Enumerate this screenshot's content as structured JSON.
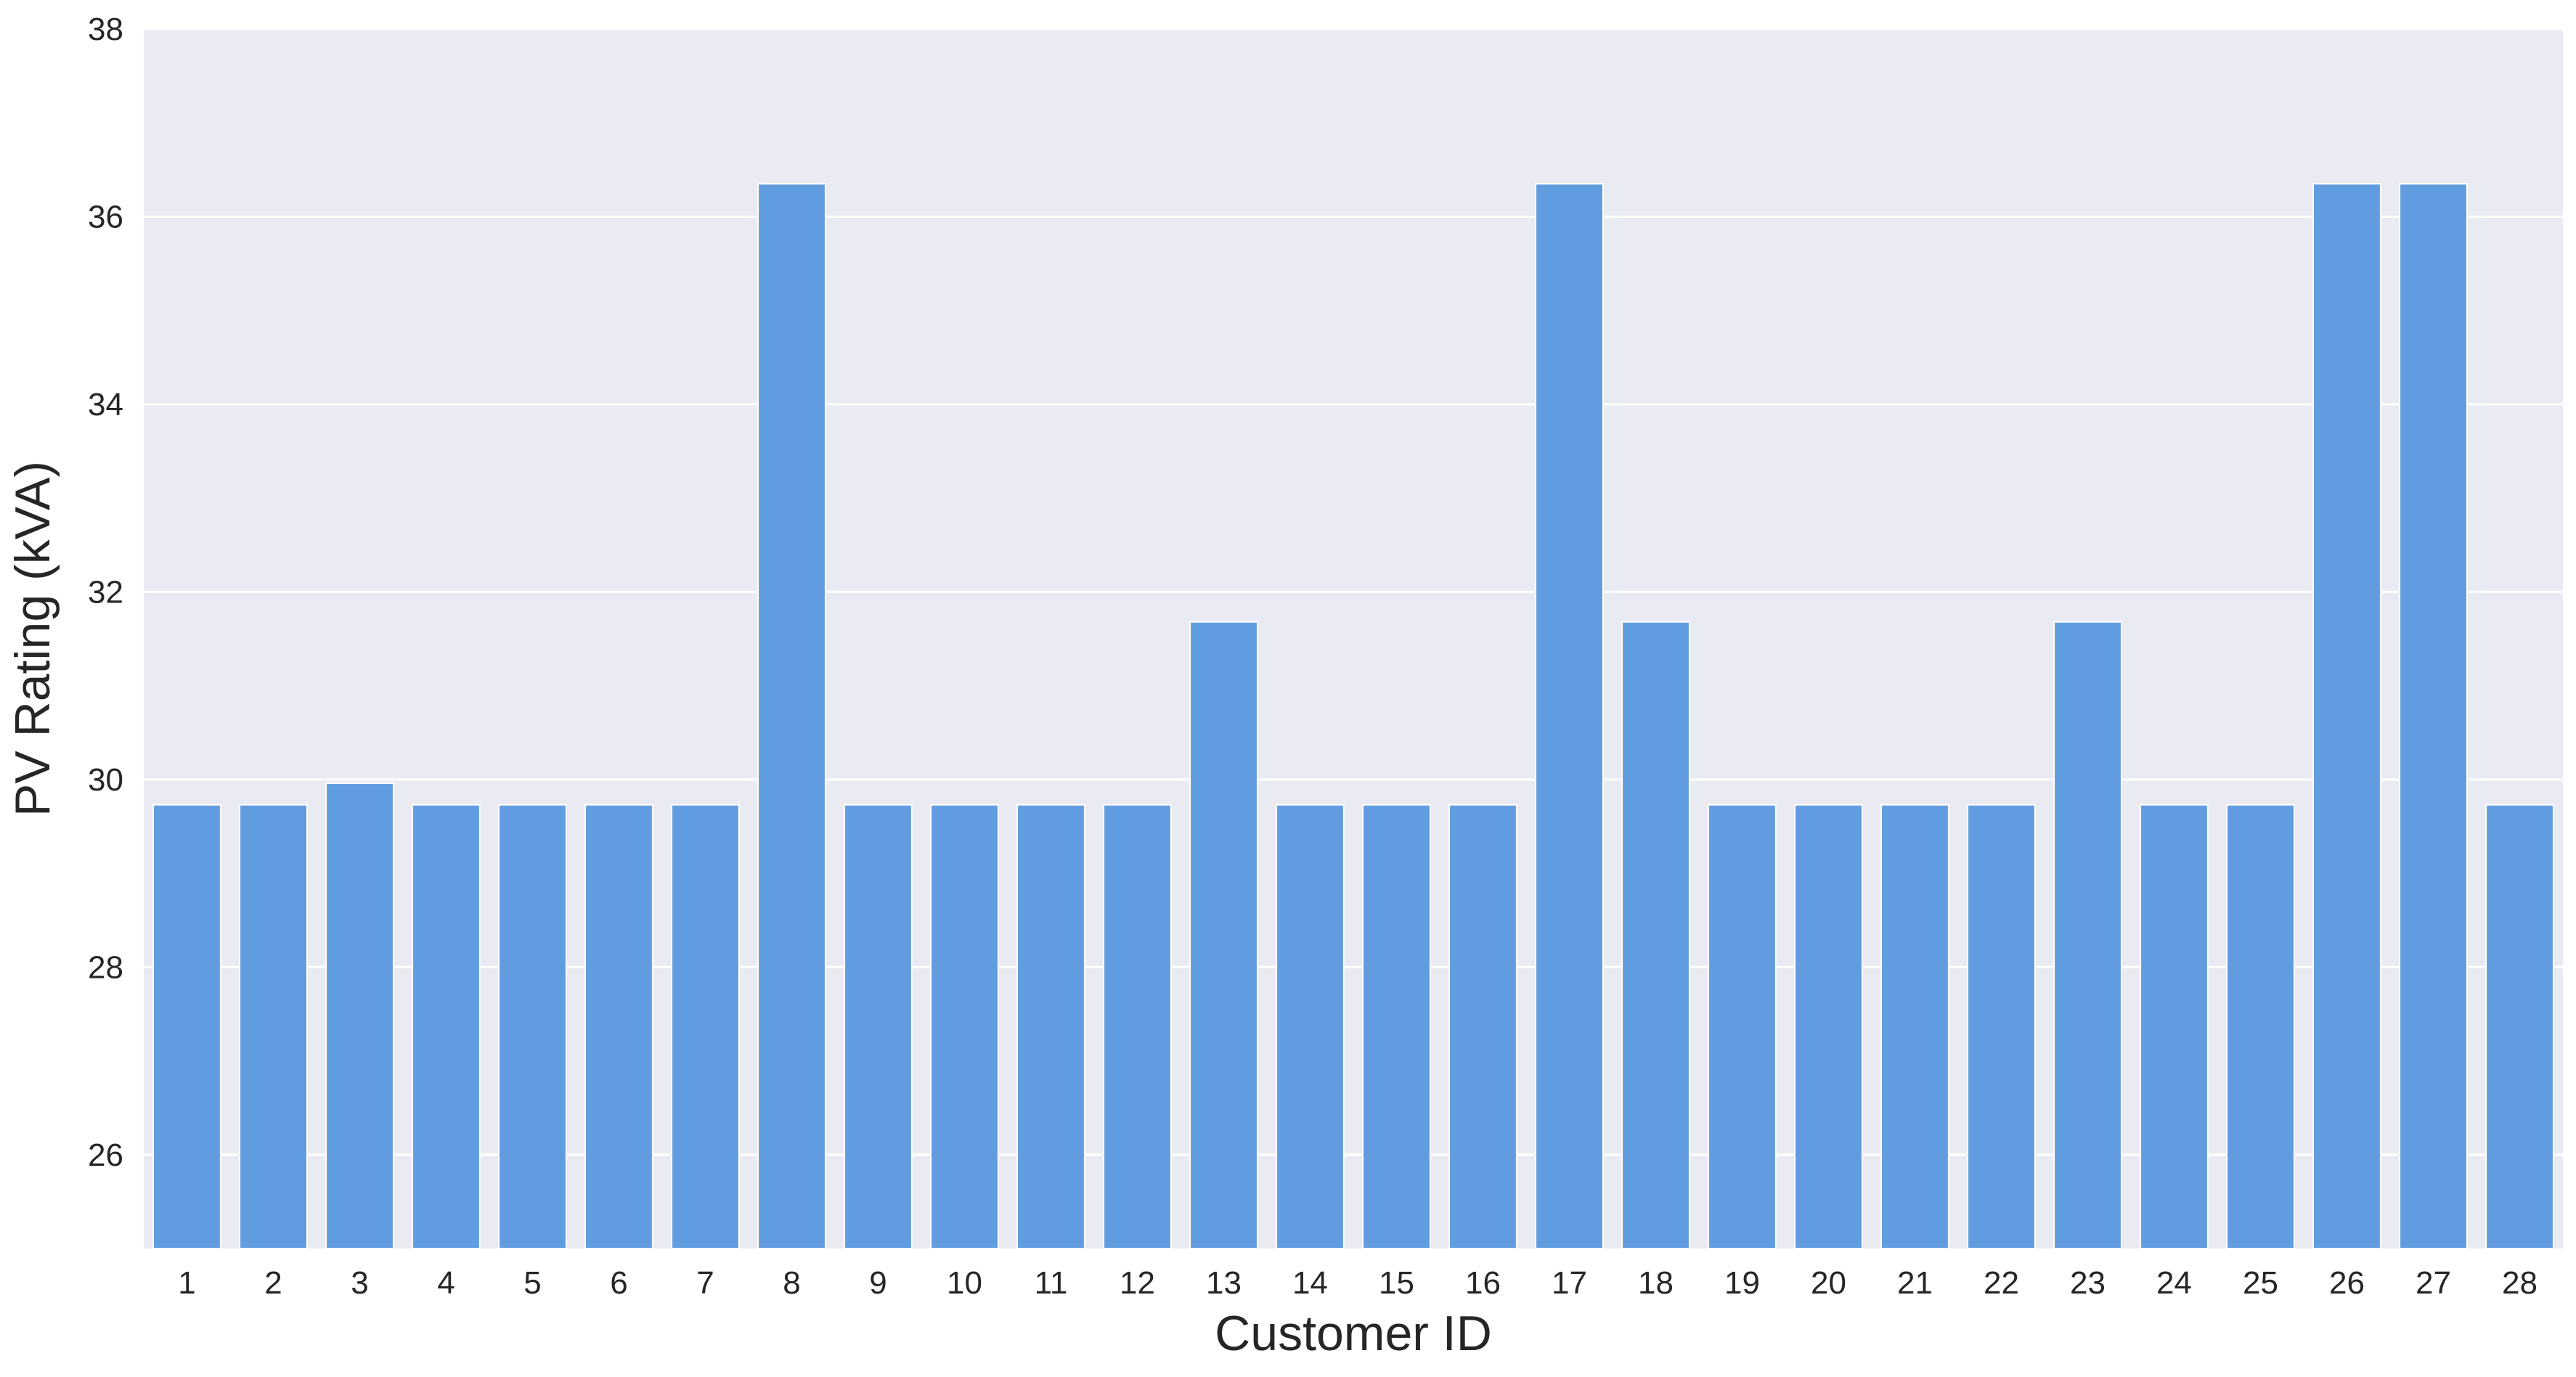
{
  "chart_data": {
    "type": "bar",
    "title": "",
    "xlabel": "Customer ID",
    "ylabel": "PV Rating (kVA)",
    "categories": [
      "1",
      "2",
      "3",
      "4",
      "5",
      "6",
      "7",
      "8",
      "9",
      "10",
      "11",
      "12",
      "13",
      "14",
      "15",
      "16",
      "17",
      "18",
      "19",
      "20",
      "21",
      "22",
      "23",
      "24",
      "25",
      "26",
      "27",
      "28"
    ],
    "values": [
      29.73,
      29.73,
      29.96,
      29.73,
      29.73,
      29.73,
      29.73,
      36.35,
      29.73,
      29.73,
      29.73,
      29.73,
      31.68,
      29.73,
      29.73,
      29.73,
      36.35,
      31.68,
      29.73,
      29.73,
      29.73,
      29.73,
      31.68,
      29.73,
      29.73,
      36.35,
      36.35,
      29.73
    ],
    "ylim": [
      25,
      38
    ],
    "yticks": [
      26,
      28,
      30,
      32,
      34,
      36,
      38
    ],
    "grid": true,
    "legend": "none",
    "colors": {
      "bar": "#619ce0",
      "plot_background": "#eaeaf2",
      "grid": "#ffffff",
      "text": "#262626"
    }
  }
}
